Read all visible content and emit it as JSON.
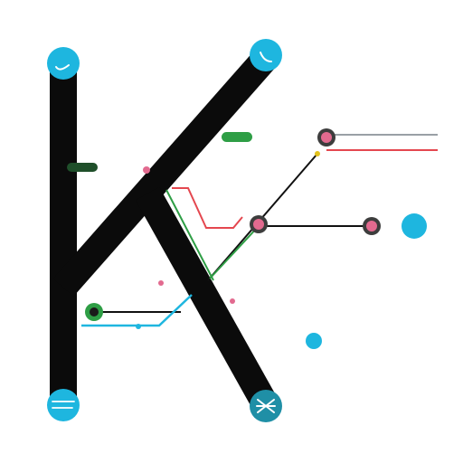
{
  "colors": {
    "background": "#ffffff",
    "stroke_main": "#0b0b0b",
    "accent_blue": "#1eb6df",
    "accent_teal": "#1f8fa6",
    "accent_green": "#2e9e45",
    "accent_red": "#e4474f",
    "accent_pink": "#e26a8f",
    "node_dark": "#3d3d3d"
  },
  "icons": {
    "top_left_node": "phone-icon",
    "top_right_node": "chat-bubble-icon",
    "bottom_left_node": "message-lines-icon",
    "bottom_right_node": "cross-arrows-icon"
  },
  "labels": {
    "top_right": "",
    "upper_right_line": "",
    "left_pill": "",
    "green_pill": "",
    "left_middle": "",
    "mid_right_node": "",
    "blue_dot": "",
    "bottom_right": ""
  }
}
